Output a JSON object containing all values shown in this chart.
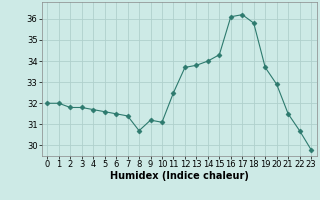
{
  "x": [
    0,
    1,
    2,
    3,
    4,
    5,
    6,
    7,
    8,
    9,
    10,
    11,
    12,
    13,
    14,
    15,
    16,
    17,
    18,
    19,
    20,
    21,
    22,
    23
  ],
  "y": [
    32.0,
    32.0,
    31.8,
    31.8,
    31.7,
    31.6,
    31.5,
    31.4,
    30.7,
    31.2,
    31.1,
    32.5,
    33.7,
    33.8,
    34.0,
    34.3,
    36.1,
    36.2,
    35.8,
    33.7,
    32.9,
    31.5,
    30.7,
    29.8
  ],
  "line_color": "#2d7a6e",
  "marker": "D",
  "marker_size": 2.5,
  "bg_color": "#cdeae6",
  "grid_color": "#b0d0cc",
  "xlabel": "Humidex (Indice chaleur)",
  "ylim": [
    29.5,
    36.8
  ],
  "yticks": [
    30,
    31,
    32,
    33,
    34,
    35,
    36
  ],
  "xticks": [
    0,
    1,
    2,
    3,
    4,
    5,
    6,
    7,
    8,
    9,
    10,
    11,
    12,
    13,
    14,
    15,
    16,
    17,
    18,
    19,
    20,
    21,
    22,
    23
  ],
  "tick_label_fontsize": 6,
  "xlabel_fontsize": 7
}
